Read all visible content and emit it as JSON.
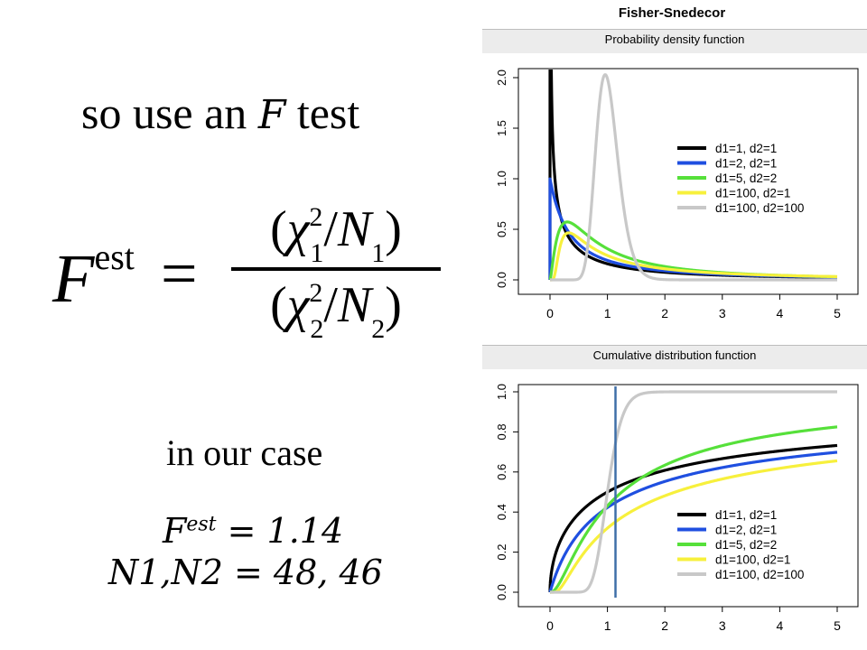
{
  "slide": {
    "headline_pre": "so use an",
    "headline_var": "F",
    "headline_post": "test",
    "formula": {
      "lhs": "F",
      "lhs_sup": "est",
      "eq": "=",
      "num_open": "(",
      "num_chi": "χ",
      "num_sup": "2",
      "num_sub": "1",
      "num_slash": "/",
      "num_n": "N",
      "num_nsub": "1",
      "num_close": ")",
      "den_open": "(",
      "den_chi": "χ",
      "den_sup": "2",
      "den_sub": "2",
      "den_slash": "/",
      "den_n": "N",
      "den_nsub": "2",
      "den_close": ")"
    },
    "case_label": "in our case",
    "fest_var": "F",
    "fest_sup": "est",
    "fest_value": " = 1.14",
    "n_line": "N1,N2 = 48, 46"
  },
  "chart_data": [
    {
      "type": "line",
      "figure_title": "Fisher-Snedecor",
      "title": "Probability density function",
      "xlim": [
        0,
        5
      ],
      "ylim": [
        0,
        2.0
      ],
      "xticks": [
        0,
        1,
        2,
        3,
        4,
        5
      ],
      "yticks": [
        0.0,
        0.5,
        1.0,
        1.5,
        2.0
      ],
      "ytick_labels": [
        "0.0",
        "0.5",
        "1.0",
        "1.5",
        "2.0"
      ],
      "legend_position": "right",
      "series": [
        {
          "name": "d1=1, d2=1",
          "color": "#000000",
          "d1": 1,
          "d2": 1
        },
        {
          "name": "d1=2, d2=1",
          "color": "#1f4fe0",
          "d1": 2,
          "d2": 1
        },
        {
          "name": "d1=5, d2=2",
          "color": "#56e03a",
          "d1": 5,
          "d2": 2
        },
        {
          "name": "d1=100, d2=1",
          "color": "#f7f03c",
          "d1": 100,
          "d2": 1
        },
        {
          "name": "d1=100, d2=100",
          "color": "#c8c8c8",
          "d1": 100,
          "d2": 100
        }
      ]
    },
    {
      "type": "line",
      "title": "Cumulative distribution function",
      "xlim": [
        0,
        5
      ],
      "ylim": [
        0,
        1.0
      ],
      "xticks": [
        0,
        1,
        2,
        3,
        4,
        5
      ],
      "yticks": [
        0.0,
        0.2,
        0.4,
        0.6,
        0.8,
        1.0
      ],
      "ytick_labels": [
        "0.0",
        "0.2",
        "0.4",
        "0.6",
        "0.8",
        "1.0"
      ],
      "legend_position": "bottom-right",
      "vertical_line": {
        "x": 1.14,
        "color": "#3f6fa8"
      },
      "series": [
        {
          "name": "d1=1, d2=1",
          "color": "#000000",
          "d1": 1,
          "d2": 1
        },
        {
          "name": "d1=2, d2=1",
          "color": "#1f4fe0",
          "d1": 2,
          "d2": 1
        },
        {
          "name": "d1=5, d2=2",
          "color": "#56e03a",
          "d1": 5,
          "d2": 2
        },
        {
          "name": "d1=100, d2=1",
          "color": "#f7f03c",
          "d1": 100,
          "d2": 1
        },
        {
          "name": "d1=100, d2=100",
          "color": "#c8c8c8",
          "d1": 100,
          "d2": 100
        }
      ]
    }
  ]
}
